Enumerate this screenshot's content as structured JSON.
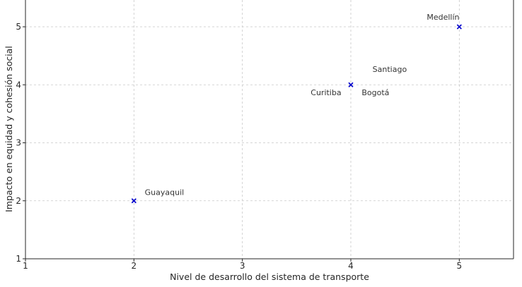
{
  "chart_data": {
    "type": "scatter",
    "title": "",
    "xlabel": "Nivel de desarrollo del sistema de transporte",
    "ylabel": "Impacto en equidad y cohesión social",
    "xlim": [
      1,
      5.5
    ],
    "ylim": [
      1,
      5.5
    ],
    "xticks": [
      "1",
      "2",
      "3",
      "4",
      "5"
    ],
    "yticks": [
      "1",
      "2",
      "3",
      "4",
      "5"
    ],
    "grid": true,
    "marker": "x",
    "marker_color": "#0000cc",
    "points": [
      {
        "x": 2,
        "y": 2
      },
      {
        "x": 4,
        "y": 4
      },
      {
        "x": 5,
        "y": 5
      }
    ],
    "annotations": [
      {
        "text": "Guayaquil",
        "x": 2.1,
        "y": 2.1
      },
      {
        "text": "Curitiba",
        "x": 3.63,
        "y": 3.82
      },
      {
        "text": "Bogotá",
        "x": 4.1,
        "y": 3.82
      },
      {
        "text": "Santiago",
        "x": 4.2,
        "y": 4.22
      },
      {
        "text": "Medellín",
        "x": 4.7,
        "y": 5.12
      }
    ]
  }
}
